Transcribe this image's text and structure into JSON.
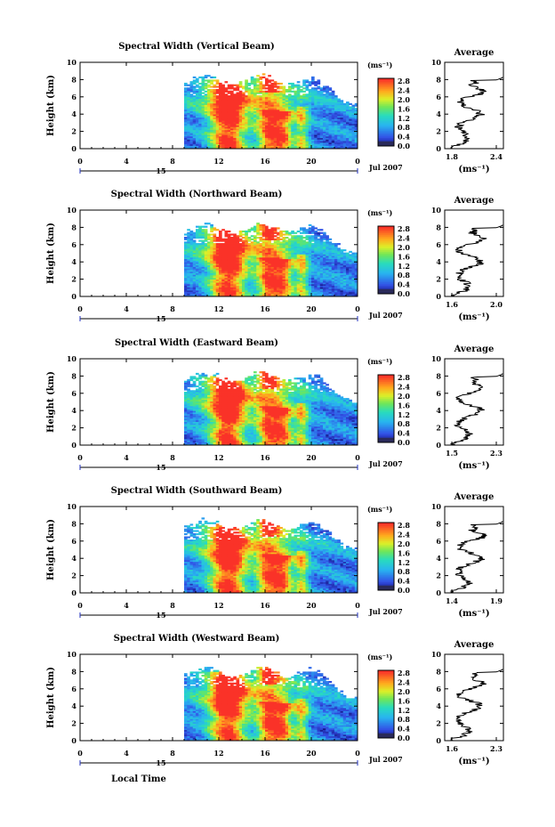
{
  "chart_data": [
    {
      "type": "heatmap",
      "title": "Spectral Width (Vertical Beam)",
      "ylabel": "Height (km)",
      "xlim": [
        0,
        24
      ],
      "ylim": [
        0,
        10
      ],
      "x_ticks": [
        "0",
        "4",
        "8",
        "12",
        "16",
        "20",
        "0"
      ],
      "y_ticks": [
        "0",
        "2",
        "4",
        "6",
        "8",
        "10"
      ],
      "date_label": "Jul 2007",
      "day_label": "15",
      "colorbar": {
        "unit": "(ms⁻¹)",
        "ticks": [
          "0.0",
          "0.4",
          "0.8",
          "1.2",
          "1.6",
          "2.0",
          "2.4",
          "2.8"
        ]
      },
      "average": {
        "title": "Average",
        "xlabel": "(ms⁻¹)",
        "xlim": [
          1.8,
          2.4
        ],
        "x_ticks": [
          "1.8",
          "2.4"
        ],
        "y_ticks": [
          "0",
          "2",
          "4",
          "6",
          "8",
          "10"
        ]
      }
    },
    {
      "type": "heatmap",
      "title": "Spectral Width (Northward Beam)",
      "ylabel": "Height (km)",
      "xlim": [
        0,
        24
      ],
      "ylim": [
        0,
        10
      ],
      "x_ticks": [
        "0",
        "4",
        "8",
        "12",
        "16",
        "20",
        "0"
      ],
      "y_ticks": [
        "0",
        "2",
        "4",
        "6",
        "8",
        "10"
      ],
      "date_label": "Jul 2007",
      "day_label": "15",
      "colorbar": {
        "unit": "(ms⁻¹)",
        "ticks": [
          "0.0",
          "0.4",
          "0.8",
          "1.2",
          "1.6",
          "2.0",
          "2.4",
          "2.8"
        ]
      },
      "average": {
        "title": "Average",
        "xlabel": "(ms⁻¹)",
        "xlim": [
          1.6,
          2.0
        ],
        "x_ticks": [
          "1.6",
          "2.0"
        ],
        "y_ticks": [
          "0",
          "2",
          "4",
          "6",
          "8",
          "10"
        ]
      }
    },
    {
      "type": "heatmap",
      "title": "Spectral Width (Eastward Beam)",
      "ylabel": "Height (km)",
      "xlim": [
        0,
        24
      ],
      "ylim": [
        0,
        10
      ],
      "x_ticks": [
        "0",
        "4",
        "8",
        "12",
        "16",
        "20",
        "0"
      ],
      "y_ticks": [
        "0",
        "2",
        "4",
        "6",
        "8",
        "10"
      ],
      "date_label": "Jul 2007",
      "day_label": "15",
      "colorbar": {
        "unit": "(ms⁻¹)",
        "ticks": [
          "0.0",
          "0.4",
          "0.8",
          "1.2",
          "1.6",
          "2.0",
          "2.4",
          "2.8"
        ]
      },
      "average": {
        "title": "Average",
        "xlabel": "(ms⁻¹)",
        "xlim": [
          1.5,
          2.3
        ],
        "x_ticks": [
          "1.5",
          "2.3"
        ],
        "y_ticks": [
          "0",
          "2",
          "4",
          "6",
          "8",
          "10"
        ]
      }
    },
    {
      "type": "heatmap",
      "title": "Spectral Width (Southward Beam)",
      "ylabel": "Height (km)",
      "xlim": [
        0,
        24
      ],
      "ylim": [
        0,
        10
      ],
      "x_ticks": [
        "0",
        "4",
        "8",
        "12",
        "16",
        "20",
        "0"
      ],
      "y_ticks": [
        "0",
        "2",
        "4",
        "6",
        "8",
        "10"
      ],
      "date_label": "Jul 2007",
      "day_label": "15",
      "colorbar": {
        "unit": "(ms⁻¹)",
        "ticks": [
          "0.0",
          "0.4",
          "0.8",
          "1.2",
          "1.6",
          "2.0",
          "2.4",
          "2.8"
        ]
      },
      "average": {
        "title": "Average",
        "xlabel": "(ms⁻¹)",
        "xlim": [
          1.4,
          1.9
        ],
        "x_ticks": [
          "1.4",
          "1.9"
        ],
        "y_ticks": [
          "0",
          "2",
          "4",
          "6",
          "8",
          "10"
        ]
      }
    },
    {
      "type": "heatmap",
      "title": "Spectral Width (Westward Beam)",
      "ylabel": "Height (km)",
      "xlabel": "Local Time",
      "xlim": [
        0,
        24
      ],
      "ylim": [
        0,
        10
      ],
      "x_ticks": [
        "0",
        "4",
        "8",
        "12",
        "16",
        "20",
        "0"
      ],
      "y_ticks": [
        "0",
        "2",
        "4",
        "6",
        "8",
        "10"
      ],
      "date_label": "Jul 2007",
      "day_label": "15",
      "colorbar": {
        "unit": "(ms⁻¹)",
        "ticks": [
          "0.0",
          "0.4",
          "0.8",
          "1.2",
          "1.6",
          "2.0",
          "2.4",
          "2.8"
        ]
      },
      "average": {
        "title": "Average",
        "xlabel": "(ms⁻¹)",
        "xlim": [
          1.6,
          2.3
        ],
        "x_ticks": [
          "1.6",
          "2.3"
        ],
        "y_ticks": [
          "0",
          "2",
          "4",
          "6",
          "8",
          "10"
        ]
      }
    }
  ]
}
